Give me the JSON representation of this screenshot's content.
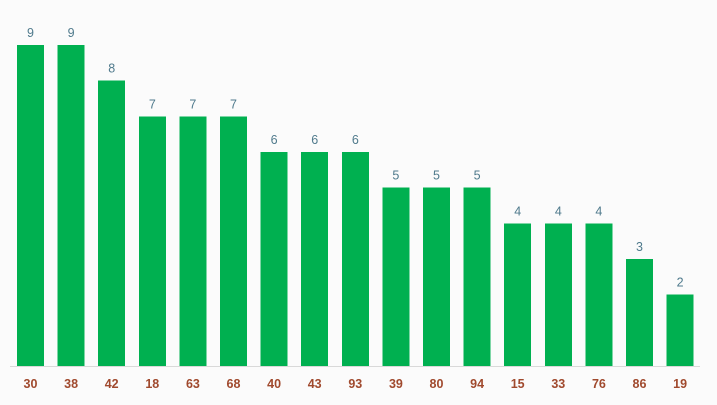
{
  "chart_data": {
    "type": "bar",
    "categories": [
      "30",
      "38",
      "42",
      "18",
      "63",
      "68",
      "40",
      "43",
      "93",
      "39",
      "80",
      "94",
      "15",
      "33",
      "76",
      "86",
      "19"
    ],
    "values": [
      9,
      9,
      8,
      7,
      7,
      7,
      6,
      6,
      6,
      5,
      5,
      5,
      4,
      4,
      4,
      3,
      2
    ],
    "value_labels": [
      "9",
      "9",
      "8",
      "7",
      "7",
      "7",
      "6",
      "6",
      "6",
      "5",
      "5",
      "5",
      "4",
      "4",
      "4",
      "3",
      "2"
    ],
    "ylim": [
      0,
      9
    ],
    "grid": false,
    "legend": "none",
    "colors": {
      "bar": "#00b050",
      "value_label": "#4f7a8c",
      "tick_label": "#a0492d",
      "baseline": "#d9d9d9",
      "background": "#fbfbfb"
    }
  }
}
